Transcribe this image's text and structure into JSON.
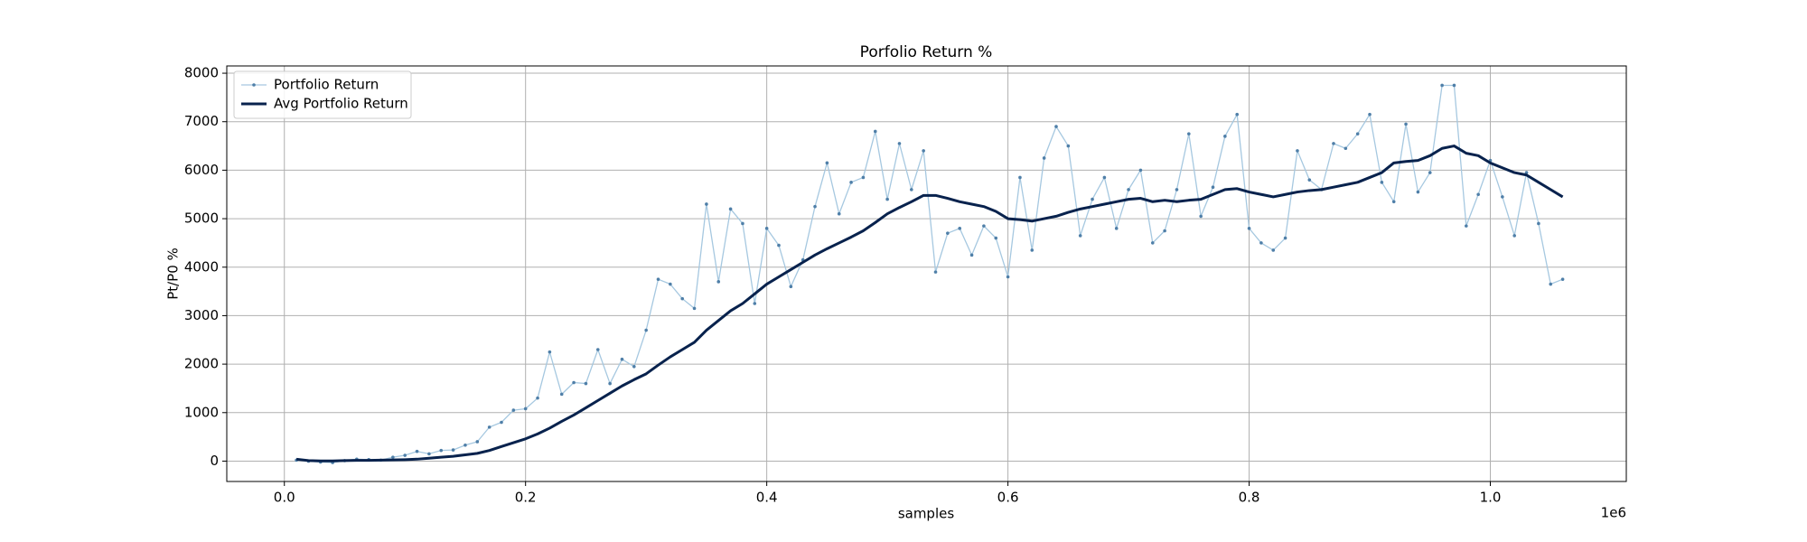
{
  "chart_data": {
    "type": "line",
    "title": "Porfolio Return %",
    "x_label": "samples",
    "y_label": "Pt/P0 %",
    "x_offset_label": "1e6",
    "x": [
      10000,
      20000,
      30000,
      40000,
      50000,
      60000,
      70000,
      80000,
      90000,
      100000,
      110000,
      120000,
      130000,
      140000,
      150000,
      160000,
      170000,
      180000,
      190000,
      200000,
      210000,
      220000,
      230000,
      240000,
      250000,
      260000,
      270000,
      280000,
      290000,
      300000,
      310000,
      320000,
      330000,
      340000,
      350000,
      360000,
      370000,
      380000,
      390000,
      400000,
      410000,
      420000,
      430000,
      440000,
      450000,
      460000,
      470000,
      480000,
      490000,
      500000,
      510000,
      520000,
      530000,
      540000,
      550000,
      560000,
      570000,
      580000,
      590000,
      600000,
      610000,
      620000,
      630000,
      640000,
      650000,
      660000,
      670000,
      680000,
      690000,
      700000,
      710000,
      720000,
      730000,
      740000,
      750000,
      760000,
      770000,
      780000,
      790000,
      800000,
      810000,
      820000,
      830000,
      840000,
      850000,
      860000,
      870000,
      880000,
      890000,
      900000,
      910000,
      920000,
      930000,
      940000,
      950000,
      960000,
      970000,
      980000,
      990000,
      1000000,
      1010000,
      1020000,
      1030000,
      1040000,
      1050000,
      1060000
    ],
    "series": [
      {
        "name": "Portfolio Return",
        "color": "#a6c8e0",
        "marker_color": "#4f7fa8",
        "width": 1.3,
        "markers": true,
        "values": [
          20,
          0,
          -20,
          -30,
          10,
          40,
          30,
          20,
          80,
          120,
          200,
          150,
          220,
          230,
          330,
          400,
          700,
          800,
          1050,
          1080,
          1300,
          2250,
          1380,
          1620,
          1600,
          2300,
          1600,
          2100,
          1950,
          2700,
          3750,
          3650,
          3350,
          3150,
          5300,
          3700,
          5200,
          4900,
          3250,
          4800,
          4450,
          3600,
          4150,
          5250,
          6150,
          5100,
          5750,
          5850,
          6800,
          5400,
          6550,
          5600,
          6400,
          3900,
          4700,
          4800,
          4250,
          4850,
          4600,
          3800,
          5850,
          4350,
          6250,
          6900,
          6500,
          4650,
          5400,
          5850,
          4800,
          5600,
          6000,
          4500,
          4750,
          5600,
          6750,
          5050,
          5650,
          6700,
          7150,
          4800,
          4500,
          4350,
          4600,
          6400,
          5800,
          5600,
          6550,
          6450,
          6750,
          7150,
          5750,
          5350,
          6950,
          5550,
          5950,
          7750,
          7750,
          4850,
          5500,
          6200,
          5450,
          4650,
          5950,
          4900,
          3650,
          3750
        ]
      },
      {
        "name": "Avg Portfolio Return",
        "color": "#08224d",
        "width": 3,
        "markers": false,
        "values": [
          40,
          10,
          5,
          5,
          10,
          15,
          15,
          20,
          25,
          30,
          40,
          60,
          80,
          100,
          130,
          160,
          220,
          300,
          380,
          460,
          560,
          680,
          820,
          950,
          1100,
          1250,
          1400,
          1550,
          1680,
          1800,
          1980,
          2150,
          2300,
          2450,
          2700,
          2900,
          3100,
          3250,
          3450,
          3650,
          3800,
          3950,
          4100,
          4250,
          4380,
          4500,
          4620,
          4750,
          4920,
          5100,
          5230,
          5350,
          5480,
          5480,
          5420,
          5350,
          5300,
          5250,
          5150,
          5000,
          4980,
          4950,
          5000,
          5050,
          5130,
          5200,
          5250,
          5300,
          5350,
          5400,
          5420,
          5350,
          5380,
          5350,
          5380,
          5400,
          5500,
          5600,
          5620,
          5550,
          5500,
          5450,
          5500,
          5550,
          5580,
          5600,
          5650,
          5700,
          5750,
          5850,
          5950,
          6150,
          6180,
          6200,
          6300,
          6450,
          6500,
          6350,
          6300,
          6150,
          6050,
          5950,
          5900,
          5750,
          5600,
          5450
        ]
      }
    ],
    "xlim": [
      -47750,
      1112750
    ],
    "ylim": [
      -420,
      8150
    ],
    "xticks": [
      {
        "value": 0,
        "label": "0.0"
      },
      {
        "value": 200000,
        "label": "0.2"
      },
      {
        "value": 400000,
        "label": "0.4"
      },
      {
        "value": 600000,
        "label": "0.6"
      },
      {
        "value": 800000,
        "label": "0.8"
      },
      {
        "value": 1000000,
        "label": "1.0"
      }
    ],
    "yticks": [
      0,
      1000,
      2000,
      3000,
      4000,
      5000,
      6000,
      7000,
      8000
    ],
    "grid": true,
    "legend": "upper-left"
  }
}
